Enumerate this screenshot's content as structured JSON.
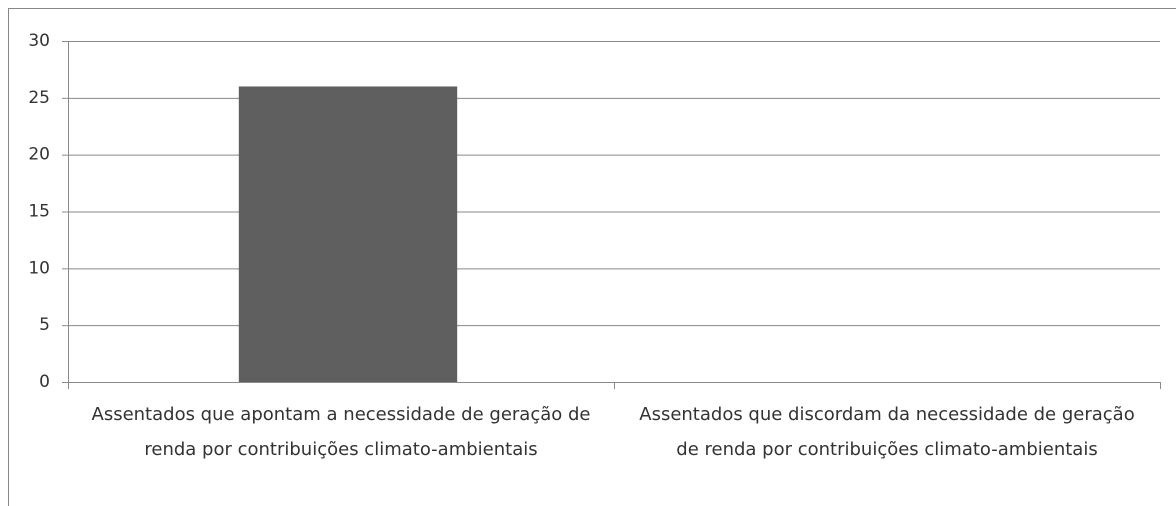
{
  "chart_data": {
    "type": "bar",
    "categories": [
      "Assentados que apontam a necessidade de geração de renda por contribuições climato-ambientais",
      "Assentados que discordam da necessidade de geração de renda por contribuições climato-ambientais"
    ],
    "values": [
      26,
      0
    ],
    "color": "#5f5f5f",
    "ylim": [
      0,
      30
    ],
    "yticks": [
      0,
      5,
      10,
      15,
      20,
      25,
      30
    ],
    "grid": true
  }
}
